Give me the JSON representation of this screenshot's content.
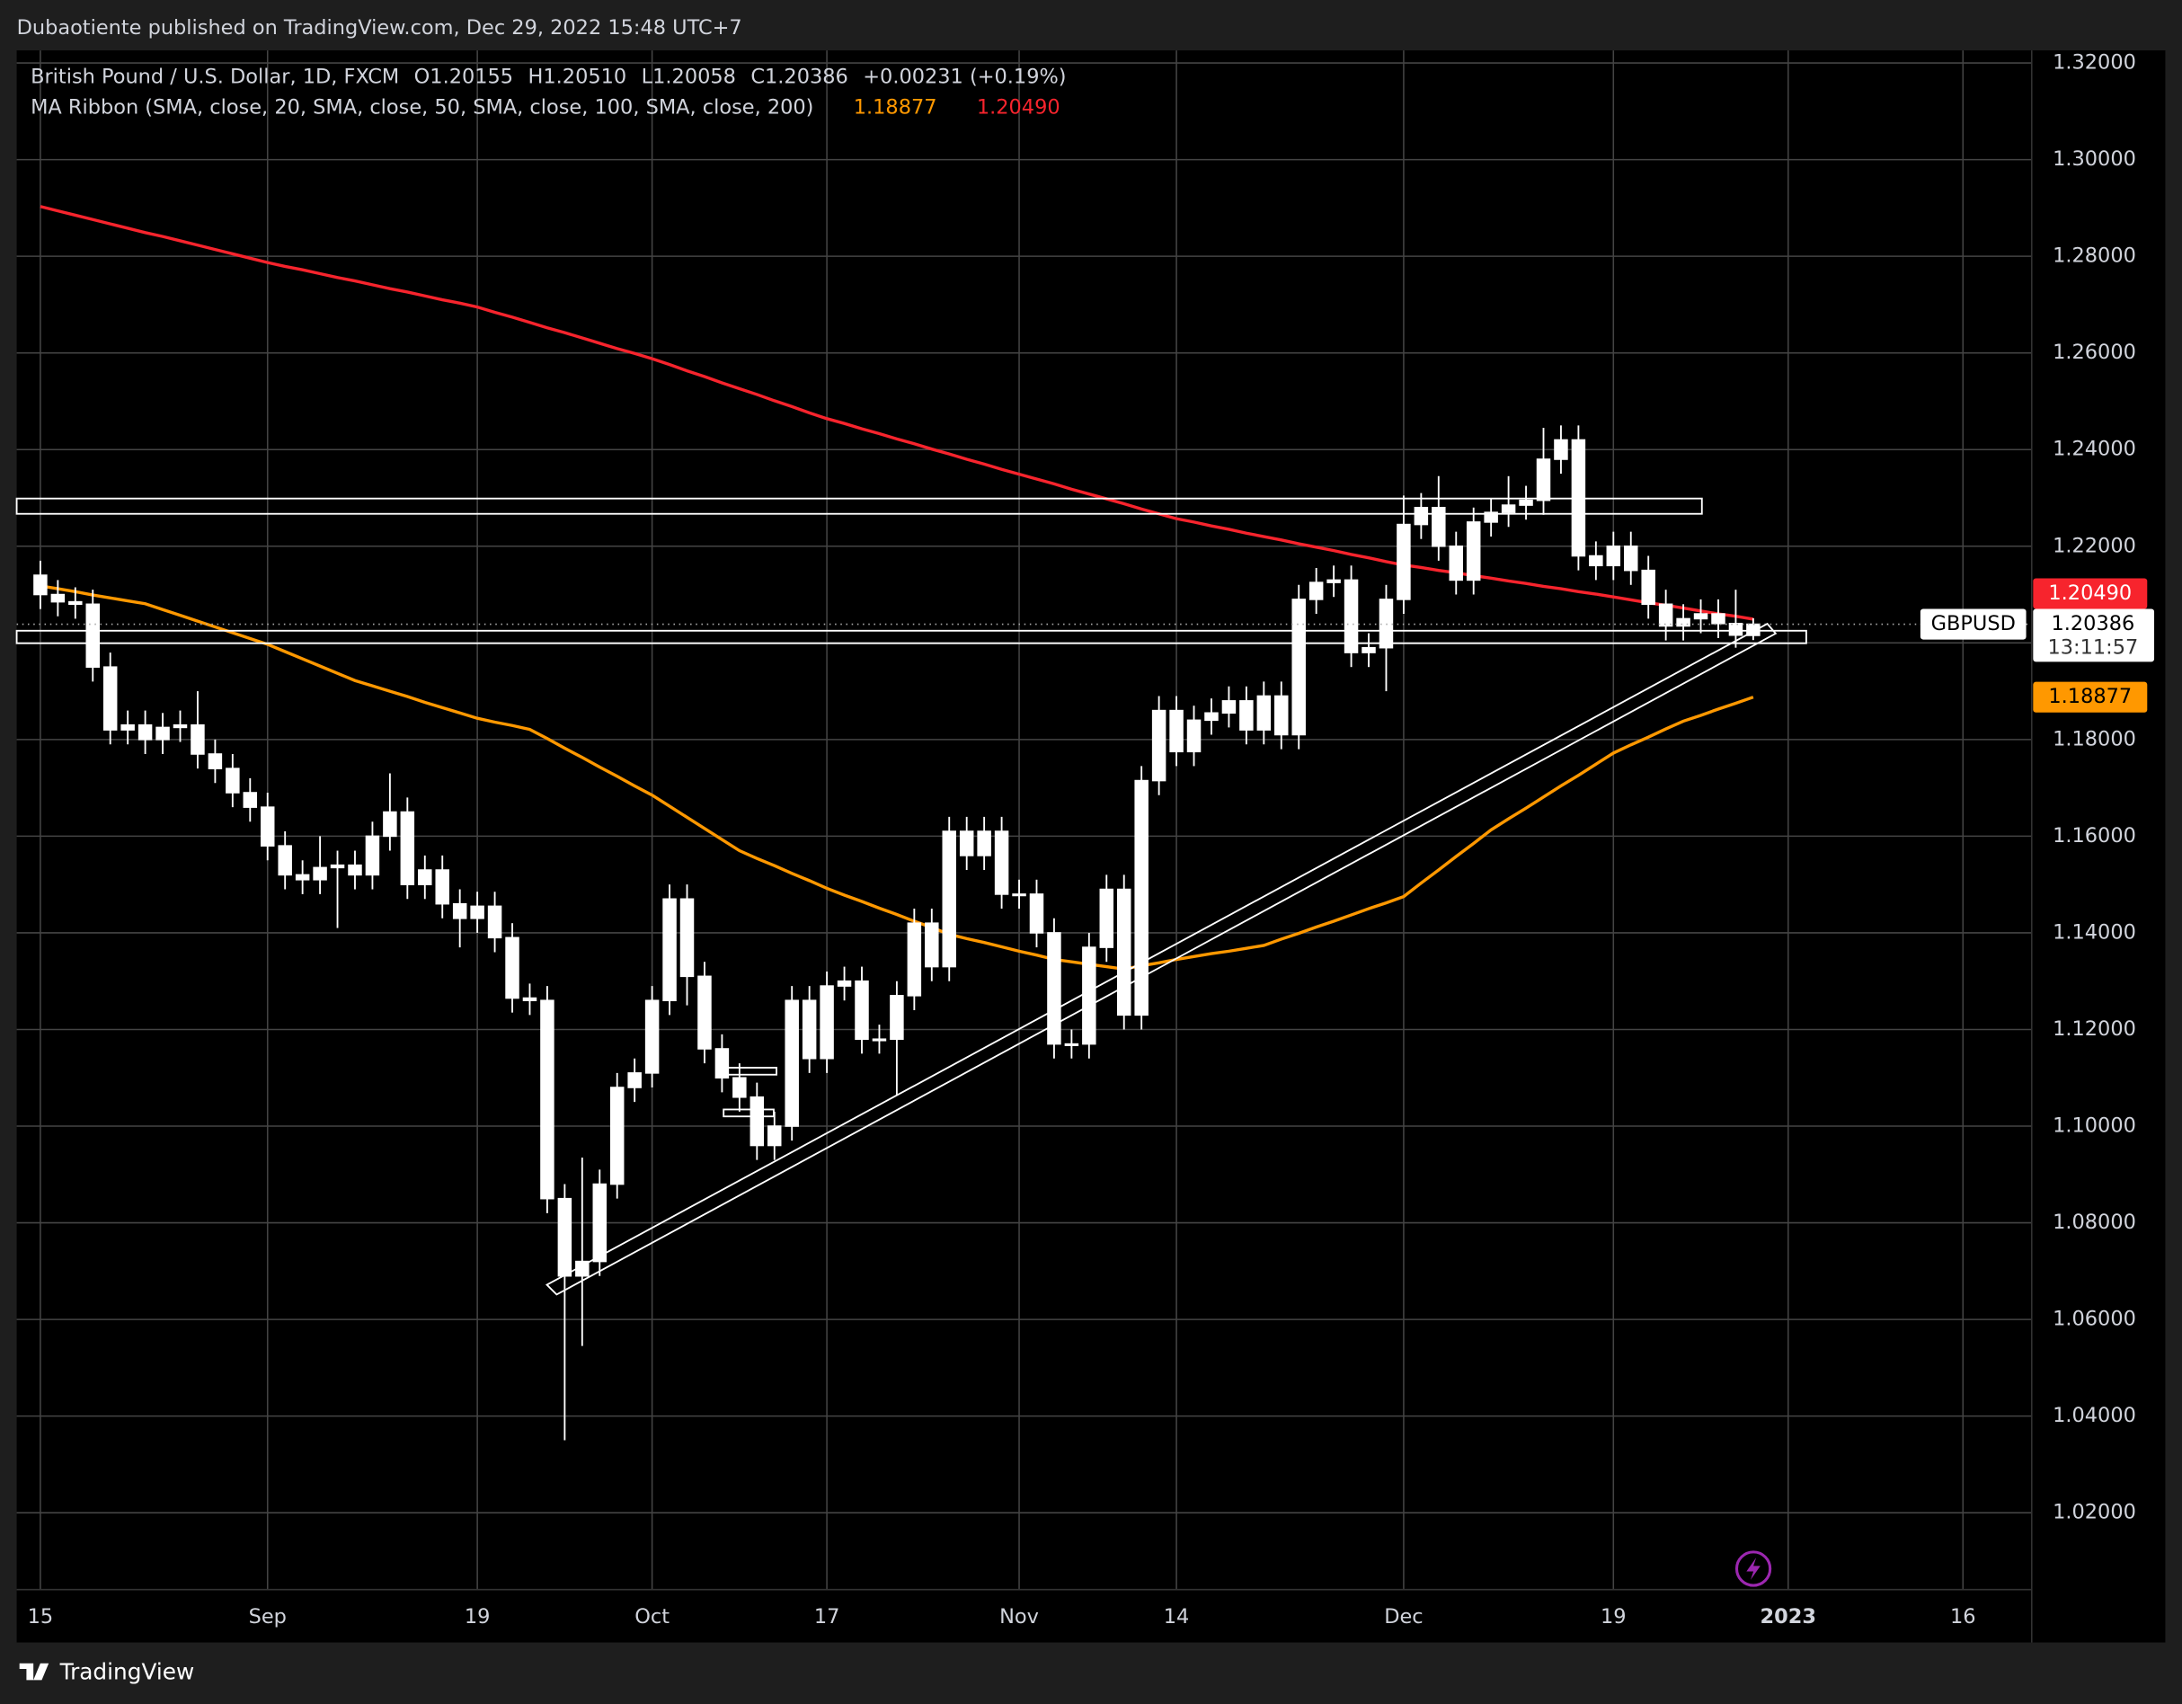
{
  "published": "Dubaotiente published on TradingView.com, Dec 29, 2022 15:48 UTC+7",
  "footer": "TradingView",
  "chart_data": {
    "type": "candlestick",
    "legend": {
      "symbol": "British Pound / U.S. Dollar, 1D, FXCM",
      "ohlc": [
        "O1.20155",
        "H1.20510",
        "L1.20058",
        "C1.20386"
      ],
      "change": "+0.00231 (+0.19%)",
      "indicator": "MA Ribbon (SMA, close, 20, SMA, close, 50, SMA, close, 100, SMA, close, 200)"
    },
    "price_badge": {
      "symbol": "GBPUSD",
      "price": "1.20386",
      "countdown": "13:11:57"
    },
    "categories": [
      "15",
      null,
      null,
      null,
      null,
      null,
      null,
      null,
      null,
      null,
      null,
      null,
      null,
      "Sep",
      null,
      null,
      null,
      null,
      null,
      null,
      null,
      null,
      null,
      null,
      null,
      "19",
      null,
      null,
      null,
      null,
      null,
      null,
      null,
      null,
      null,
      "Oct",
      null,
      null,
      null,
      null,
      null,
      null,
      null,
      null,
      null,
      "17",
      null,
      null,
      null,
      null,
      null,
      null,
      null,
      null,
      null,
      null,
      "Nov",
      null,
      null,
      null,
      null,
      null,
      null,
      null,
      null,
      "14",
      null,
      null,
      null,
      null,
      null,
      null,
      null,
      null,
      null,
      null,
      null,
      null,
      "Dec",
      null,
      null,
      null,
      null,
      null,
      null,
      null,
      null,
      null,
      null,
      null,
      "19",
      null,
      null,
      null,
      null,
      null,
      null,
      null,
      null,
      null,
      "2023",
      null,
      null,
      null,
      null,
      null,
      null,
      null,
      null,
      null,
      "16",
      null,
      null,
      null,
      null
    ],
    "open": [
      1.214,
      1.21,
      1.2085,
      1.208,
      1.195,
      1.182,
      1.183,
      1.18,
      1.1825,
      1.183,
      1.177,
      1.174,
      1.169,
      1.166,
      1.158,
      1.152,
      1.151,
      1.1535,
      1.154,
      1.152,
      1.16,
      1.165,
      1.15,
      1.153,
      1.146,
      1.143,
      1.1455,
      1.139,
      1.1265,
      1.126,
      1.085,
      1.069,
      1.072,
      1.088,
      1.108,
      1.111,
      1.126,
      1.147,
      1.131,
      1.116,
      1.11,
      1.106,
      1.096,
      1.1,
      1.126,
      1.114,
      1.129,
      1.13,
      1.118,
      1.118,
      1.127,
      1.142,
      1.133,
      1.161,
      1.156,
      1.161,
      1.148,
      1.148,
      1.14,
      1.117,
      1.117,
      1.137,
      1.149,
      1.123,
      1.1715,
      1.186,
      1.1775,
      1.184,
      1.1855,
      1.188,
      1.182,
      1.189,
      1.181,
      1.209,
      1.2125,
      1.213,
      1.198,
      1.199,
      1.209,
      1.2245,
      1.228,
      1.22,
      1.213,
      1.225,
      1.227,
      1.2285,
      1.2295,
      1.238,
      1.242,
      1.218,
      1.216,
      1.22,
      1.215,
      1.208,
      1.2035,
      1.205,
      1.206,
      1.204,
      1.20155,
      null,
      null,
      null,
      null,
      null,
      null,
      null,
      null,
      null,
      null,
      null,
      null,
      null,
      null,
      null,
      null
    ],
    "high": [
      1.217,
      1.213,
      1.2115,
      1.211,
      1.198,
      1.186,
      1.186,
      1.1855,
      1.186,
      1.19,
      1.18,
      1.177,
      1.172,
      1.169,
      1.161,
      1.155,
      1.16,
      1.157,
      1.157,
      1.163,
      1.173,
      1.168,
      1.156,
      1.156,
      1.149,
      1.1485,
      1.1485,
      1.142,
      1.1295,
      1.129,
      1.088,
      1.0935,
      1.091,
      1.111,
      1.114,
      1.129,
      1.15,
      1.15,
      1.134,
      1.119,
      1.113,
      1.109,
      1.103,
      1.129,
      1.129,
      1.132,
      1.133,
      1.133,
      1.121,
      1.13,
      1.145,
      1.145,
      1.164,
      1.164,
      1.164,
      1.164,
      1.151,
      1.151,
      1.143,
      1.12,
      1.14,
      1.152,
      1.152,
      1.1745,
      1.189,
      1.189,
      1.187,
      1.1885,
      1.191,
      1.191,
      1.192,
      1.192,
      1.212,
      1.2155,
      1.216,
      1.216,
      1.202,
      1.212,
      1.2305,
      1.231,
      1.2345,
      1.223,
      1.228,
      1.23,
      1.2345,
      1.2325,
      1.2445,
      1.245,
      1.245,
      1.221,
      1.223,
      1.223,
      1.218,
      1.211,
      1.208,
      1.209,
      1.209,
      1.211,
      1.2051,
      null,
      null,
      null,
      null,
      null,
      null,
      null,
      null,
      null,
      null,
      null,
      null,
      null,
      null,
      null,
      null
    ],
    "low": [
      1.207,
      1.2055,
      1.205,
      1.192,
      1.179,
      1.179,
      1.177,
      1.177,
      1.1795,
      1.174,
      1.171,
      1.166,
      1.163,
      1.155,
      1.149,
      1.148,
      1.148,
      1.141,
      1.149,
      1.149,
      1.157,
      1.147,
      1.147,
      1.143,
      1.137,
      1.14,
      1.136,
      1.1235,
      1.123,
      1.082,
      1.035,
      1.0545,
      1.069,
      1.085,
      1.105,
      1.108,
      1.123,
      1.125,
      1.113,
      1.107,
      1.103,
      1.093,
      1.093,
      1.097,
      1.111,
      1.111,
      1.126,
      1.115,
      1.115,
      1.1065,
      1.124,
      1.13,
      1.13,
      1.153,
      1.153,
      1.145,
      1.145,
      1.137,
      1.114,
      1.114,
      1.114,
      1.134,
      1.12,
      1.12,
      1.1685,
      1.1745,
      1.1745,
      1.181,
      1.1825,
      1.179,
      1.179,
      1.178,
      1.178,
      1.206,
      1.2095,
      1.195,
      1.195,
      1.19,
      1.206,
      1.2215,
      1.217,
      1.21,
      1.21,
      1.222,
      1.224,
      1.2255,
      1.2265,
      1.235,
      1.215,
      1.213,
      1.213,
      1.212,
      1.205,
      1.2005,
      1.2005,
      1.202,
      1.201,
      1.199,
      1.20058,
      null,
      null,
      null,
      null,
      null,
      null,
      null,
      null,
      null,
      null,
      null,
      null,
      null,
      null,
      null,
      null
    ],
    "close": [
      1.21,
      1.2085,
      1.208,
      1.195,
      1.182,
      1.183,
      1.18,
      1.1825,
      1.183,
      1.177,
      1.174,
      1.169,
      1.166,
      1.158,
      1.152,
      1.151,
      1.1535,
      1.154,
      1.152,
      1.16,
      1.165,
      1.15,
      1.153,
      1.146,
      1.143,
      1.1455,
      1.139,
      1.1265,
      1.126,
      1.085,
      1.069,
      1.072,
      1.088,
      1.108,
      1.111,
      1.126,
      1.147,
      1.131,
      1.116,
      1.11,
      1.106,
      1.096,
      1.1,
      1.126,
      1.114,
      1.129,
      1.13,
      1.118,
      1.118,
      1.127,
      1.142,
      1.133,
      1.161,
      1.156,
      1.161,
      1.148,
      1.148,
      1.14,
      1.117,
      1.117,
      1.137,
      1.149,
      1.123,
      1.1715,
      1.186,
      1.1775,
      1.184,
      1.1855,
      1.188,
      1.182,
      1.189,
      1.181,
      1.209,
      1.2125,
      1.213,
      1.198,
      1.199,
      1.209,
      1.2245,
      1.228,
      1.22,
      1.213,
      1.225,
      1.227,
      1.2285,
      1.2295,
      1.238,
      1.242,
      1.218,
      1.216,
      1.22,
      1.215,
      1.208,
      1.2035,
      1.205,
      1.206,
      1.204,
      1.2016,
      1.20386,
      null,
      null,
      null,
      null,
      null,
      null,
      null,
      null,
      null,
      null,
      null,
      null,
      null,
      null,
      null,
      null
    ],
    "candle_color": "#ffffff",
    "series": [
      {
        "color": "#ff9800",
        "last_label": "1.18877",
        "values": [
          1.2118,
          1.2112,
          1.2106,
          1.2099,
          1.2093,
          1.2087,
          1.2081,
          1.2069,
          1.2057,
          1.2045,
          1.2033,
          1.2021,
          1.2009,
          1.1997,
          1.1982,
          1.1967,
          1.1952,
          1.1937,
          1.1922,
          1.1911,
          1.19,
          1.1889,
          1.1877,
          1.1866,
          1.1855,
          1.1844,
          1.1836,
          1.1829,
          1.1821,
          1.1802,
          1.1782,
          1.1763,
          1.1743,
          1.1724,
          1.1704,
          1.1685,
          1.1662,
          1.1639,
          1.1616,
          1.1593,
          1.157,
          1.1554,
          1.1539,
          1.1523,
          1.1508,
          1.1492,
          1.1478,
          1.1465,
          1.1451,
          1.1438,
          1.1424,
          1.1411,
          1.1397,
          1.1388,
          1.138,
          1.1371,
          1.1362,
          1.1354,
          1.1345,
          1.134,
          1.1335,
          1.133,
          1.1325,
          1.1332,
          1.1338,
          1.1345,
          1.1351,
          1.1357,
          1.1362,
          1.1368,
          1.1374,
          1.1387,
          1.1399,
          1.1412,
          1.1424,
          1.1437,
          1.145,
          1.1462,
          1.1475,
          1.1503,
          1.153,
          1.1558,
          1.1585,
          1.1613,
          1.1636,
          1.1658,
          1.1681,
          1.1704,
          1.1726,
          1.1749,
          1.1772,
          1.1789,
          1.1805,
          1.1822,
          1.1838,
          1.185,
          1.1863,
          1.1875,
          1.18877,
          null,
          null,
          null,
          null,
          null,
          null,
          null,
          null,
          null,
          null,
          null,
          null,
          null,
          null,
          null,
          null
        ]
      },
      {
        "color": "#f7242d",
        "last_label": "1.20490",
        "values": [
          1.2903,
          1.2894,
          1.2885,
          1.2876,
          1.2867,
          1.2858,
          1.2849,
          1.2841,
          1.2832,
          1.2823,
          1.2814,
          1.2805,
          1.2796,
          1.2787,
          1.2779,
          1.2772,
          1.2764,
          1.2756,
          1.2749,
          1.2741,
          1.2733,
          1.2726,
          1.2718,
          1.271,
          1.2703,
          1.2695,
          1.2684,
          1.2674,
          1.2663,
          1.2652,
          1.2642,
          1.2631,
          1.262,
          1.2609,
          1.2599,
          1.2588,
          1.2576,
          1.2563,
          1.2551,
          1.2538,
          1.2526,
          1.2514,
          1.2501,
          1.2489,
          1.2476,
          1.2464,
          1.2454,
          1.2443,
          1.2433,
          1.2422,
          1.2412,
          1.2401,
          1.2391,
          1.238,
          1.237,
          1.2359,
          1.2349,
          1.2339,
          1.2329,
          1.2318,
          1.2308,
          1.2298,
          1.2288,
          1.2277,
          1.2267,
          1.2257,
          1.225,
          1.2242,
          1.2235,
          1.2227,
          1.222,
          1.2213,
          1.2205,
          1.2198,
          1.2191,
          1.2183,
          1.2176,
          1.2168,
          1.2161,
          1.2156,
          1.215,
          1.2145,
          1.2139,
          1.2134,
          1.2128,
          1.2123,
          1.2117,
          1.2112,
          1.2106,
          1.2101,
          1.2095,
          1.2089,
          1.2083,
          1.2078,
          1.2072,
          1.2066,
          1.206,
          1.2055,
          1.2049,
          null,
          null,
          null,
          null,
          null,
          null,
          null,
          null,
          null,
          null,
          null,
          null,
          null,
          null,
          null,
          null
        ]
      }
    ],
    "ylim": [
      1.0041,
      1.3226
    ],
    "yticks": [
      {
        "value": 1.02,
        "label": "1.02000"
      },
      {
        "value": 1.04,
        "label": "1.04000"
      },
      {
        "value": 1.06,
        "label": "1.06000"
      },
      {
        "value": 1.08,
        "label": "1.08000"
      },
      {
        "value": 1.1,
        "label": "1.10000"
      },
      {
        "value": 1.12,
        "label": "1.12000"
      },
      {
        "value": 1.14,
        "label": "1.14000"
      },
      {
        "value": 1.16,
        "label": "1.16000"
      },
      {
        "value": 1.18,
        "label": "1.18000"
      },
      {
        "value": 1.2,
        "label": "1.20000"
      },
      {
        "value": 1.22,
        "label": "1.22000"
      },
      {
        "value": 1.24,
        "label": "1.24000"
      },
      {
        "value": 1.26,
        "label": "1.26000"
      },
      {
        "value": 1.28,
        "label": "1.28000"
      },
      {
        "value": 1.3,
        "label": "1.30000"
      },
      {
        "value": 1.32,
        "label": "1.32000"
      }
    ],
    "grid": true
  }
}
